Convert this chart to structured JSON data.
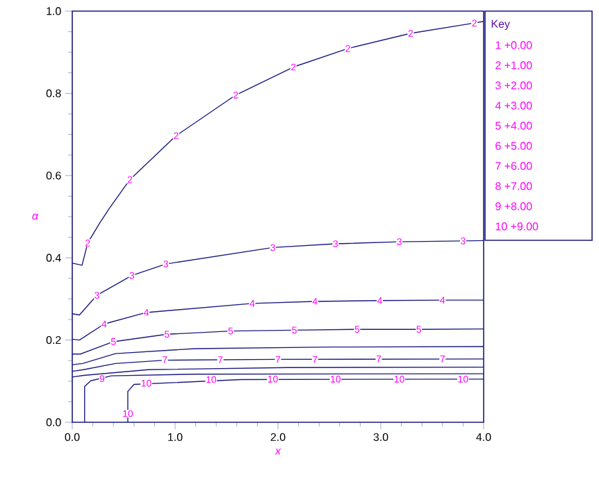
{
  "chart_data": {
    "type": "line",
    "xlabel": "x",
    "ylabel": "α",
    "legend_title": "Key",
    "xlim": [
      0,
      4
    ],
    "ylim": [
      0,
      1
    ],
    "xticks": [
      {
        "value": 0,
        "label": "0.0"
      },
      {
        "value": 1,
        "label": "1.0"
      },
      {
        "value": 2,
        "label": "2.0"
      },
      {
        "value": 3,
        "label": "3.0"
      },
      {
        "value": 4,
        "label": "4.0"
      }
    ],
    "yticks": [
      {
        "value": 0,
        "label": "0.0"
      },
      {
        "value": 0.2,
        "label": "0.2"
      },
      {
        "value": 0.4,
        "label": "0.4"
      },
      {
        "value": 0.6,
        "label": "0.6"
      },
      {
        "value": 0.8,
        "label": "0.8"
      },
      {
        "value": 1,
        "label": "1.0"
      }
    ],
    "series": [
      {
        "color": "#1a1a80",
        "x": [
          0,
          0.095,
          0.15,
          0.27,
          0.36,
          0.56,
          1.01,
          1.59,
          2.15,
          2.68,
          3.29,
          3.91,
          4
        ],
        "values": [
          0.387,
          0.382,
          0.436,
          0.486,
          0.52,
          0.59,
          0.697,
          0.796,
          0.864,
          0.909,
          0.946,
          0.971,
          0.975
        ]
      },
      {
        "color": "#1a1a80",
        "x": [
          0,
          0.07,
          0.24,
          0.58,
          0.91,
          1.95,
          2.56,
          3.18,
          3.8,
          4
        ],
        "values": [
          0.264,
          0.261,
          0.309,
          0.357,
          0.385,
          0.425,
          0.434,
          0.439,
          0.441,
          0.442
        ]
      },
      {
        "color": "#1a1a80",
        "x": [
          0,
          0.07,
          0.31,
          0.72,
          1.75,
          2.36,
          2.99,
          3.6,
          4
        ],
        "values": [
          0.202,
          0.2,
          0.239,
          0.267,
          0.289,
          0.294,
          0.296,
          0.297,
          0.297
        ]
      },
      {
        "color": "#1a1a80",
        "x": [
          0,
          0.08,
          0.4,
          0.92,
          1.54,
          2.16,
          2.77,
          3.37,
          4
        ],
        "values": [
          0.166,
          0.166,
          0.196,
          0.214,
          0.222,
          0.224,
          0.226,
          0.226,
          0.227
        ]
      },
      {
        "color": "#1a1a80",
        "x": [
          0,
          0.1,
          0.42,
          1.19,
          2.54,
          4
        ],
        "values": [
          0.14,
          0.143,
          0.167,
          0.179,
          0.183,
          0.184
        ]
      },
      {
        "color": "#1a1a80",
        "x": [
          0,
          0.11,
          0.42,
          0.9,
          2.0,
          4
        ],
        "values": [
          0.124,
          0.128,
          0.143,
          0.151,
          0.153,
          0.154
        ]
      },
      {
        "color": "#1a1a80",
        "x": [
          0,
          0.11,
          0.74,
          2.09,
          4
        ],
        "values": [
          0.11,
          0.114,
          0.128,
          0.133,
          0.134
        ]
      },
      {
        "color": "#1a1a80",
        "x": [
          0.12,
          0.12,
          0.18,
          0.38,
          1.19,
          4
        ],
        "values": [
          0,
          0.087,
          0.101,
          0.113,
          0.117,
          0.118
        ]
      },
      {
        "color": "#1a1a80",
        "x": [
          0.54,
          0.54,
          0.6,
          1.64,
          4
        ],
        "values": [
          0,
          0.075,
          0.092,
          0.104,
          0.105
        ]
      }
    ],
    "annotations": [
      "1 +0.00",
      "2 +1.00",
      "3 +2.00",
      "4 +3.00",
      "5 +4.00",
      "6 +5.00",
      "7 +6.00",
      "8 +7.00",
      "9 +8.00",
      "10 +9.00",
      {
        "text": "2",
        "x": 0.15,
        "y": 0.436
      },
      {
        "text": "2",
        "x": 0.56,
        "y": 0.59
      },
      {
        "text": "2",
        "x": 1.01,
        "y": 0.697
      },
      {
        "text": "2",
        "x": 1.59,
        "y": 0.796
      },
      {
        "text": "2",
        "x": 2.15,
        "y": 0.864
      },
      {
        "text": "2",
        "x": 2.68,
        "y": 0.909
      },
      {
        "text": "2",
        "x": 3.29,
        "y": 0.946
      },
      {
        "text": "2",
        "x": 3.91,
        "y": 0.971
      },
      {
        "text": "3",
        "x": 0.24,
        "y": 0.309
      },
      {
        "text": "3",
        "x": 0.58,
        "y": 0.357
      },
      {
        "text": "3",
        "x": 0.91,
        "y": 0.385
      },
      {
        "text": "3",
        "x": 1.95,
        "y": 0.425
      },
      {
        "text": "3",
        "x": 2.56,
        "y": 0.434
      },
      {
        "text": "3",
        "x": 3.18,
        "y": 0.439
      },
      {
        "text": "3",
        "x": 3.8,
        "y": 0.441
      },
      {
        "text": "4",
        "x": 0.31,
        "y": 0.239
      },
      {
        "text": "4",
        "x": 0.72,
        "y": 0.267
      },
      {
        "text": "4",
        "x": 1.75,
        "y": 0.289
      },
      {
        "text": "4",
        "x": 2.36,
        "y": 0.294
      },
      {
        "text": "4",
        "x": 2.99,
        "y": 0.296
      },
      {
        "text": "4",
        "x": 3.6,
        "y": 0.297
      },
      {
        "text": "5",
        "x": 0.4,
        "y": 0.196
      },
      {
        "text": "5",
        "x": 0.92,
        "y": 0.214
      },
      {
        "text": "5",
        "x": 1.54,
        "y": 0.222
      },
      {
        "text": "5",
        "x": 2.16,
        "y": 0.224
      },
      {
        "text": "5",
        "x": 2.77,
        "y": 0.226
      },
      {
        "text": "5",
        "x": 3.37,
        "y": 0.226
      },
      {
        "text": "7",
        "x": 0.9,
        "y": 0.152
      },
      {
        "text": "7",
        "x": 1.44,
        "y": 0.152
      },
      {
        "text": "7",
        "x": 2.0,
        "y": 0.153
      },
      {
        "text": "7",
        "x": 2.36,
        "y": 0.153
      },
      {
        "text": "7",
        "x": 2.98,
        "y": 0.154
      },
      {
        "text": "7",
        "x": 3.6,
        "y": 0.154
      },
      {
        "text": "9",
        "x": 0.29,
        "y": 0.106
      },
      {
        "text": "10",
        "x": 0.54,
        "y": 0.021
      },
      {
        "text": "10",
        "x": 0.72,
        "y": 0.095
      },
      {
        "text": "10",
        "x": 1.35,
        "y": 0.104
      },
      {
        "text": "10",
        "x": 1.95,
        "y": 0.105
      },
      {
        "text": "10",
        "x": 2.56,
        "y": 0.105
      },
      {
        "text": "10",
        "x": 3.18,
        "y": 0.105
      },
      {
        "text": "10",
        "x": 3.8,
        "y": 0.105
      }
    ]
  }
}
